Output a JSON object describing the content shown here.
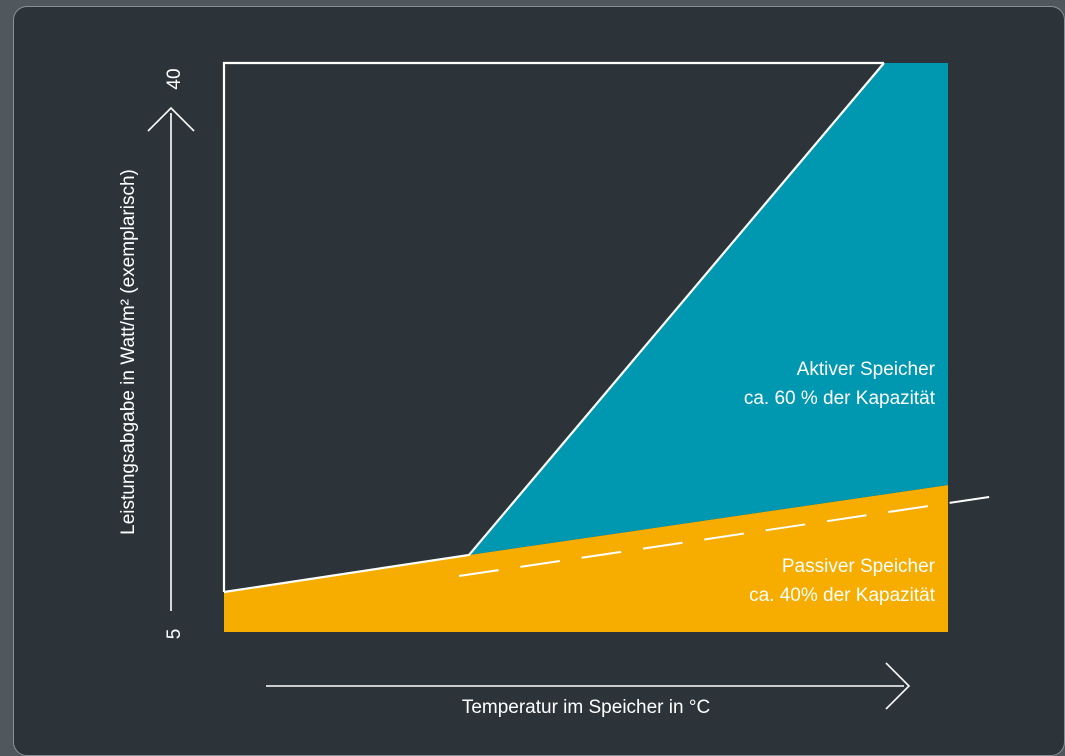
{
  "chart_data": {
    "type": "area",
    "x_label": "Temperatur im Speicher in °C",
    "y_label": "Leistungsabgabe in Watt/m² (exemplarisch)",
    "y_ticks": [
      "5",
      "40"
    ],
    "ylim": [
      5,
      40
    ],
    "regions": [
      {
        "name": "passive",
        "label_line1": "Passiver Speicher",
        "label_line2": "ca. 40% der Kapazität",
        "color": "#f6ad00"
      },
      {
        "name": "active",
        "label_line1": "Aktiver Speicher",
        "label_line2": "ca. 60 % der Kapazität",
        "color": "#0097b0"
      }
    ],
    "colors": {
      "panel_bg": "#2c343a",
      "page_bg": "#50585e",
      "line": "#ffffff"
    }
  }
}
